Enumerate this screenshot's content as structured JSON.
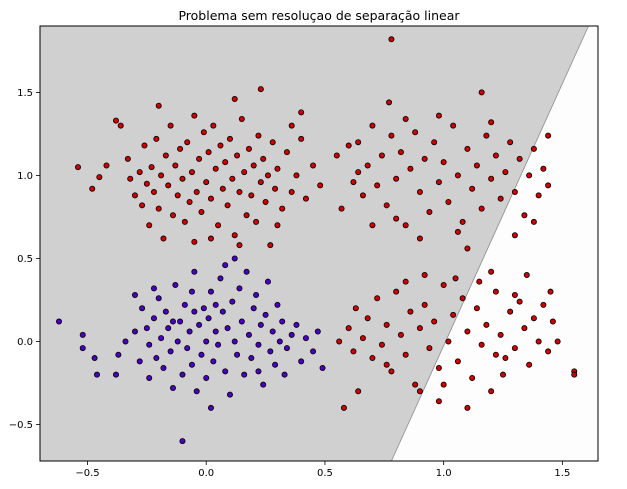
{
  "chart_data": {
    "type": "scatter",
    "title": "Problema sem resoluçao de separação linear",
    "xlabel": "",
    "ylabel": "",
    "xlim": [
      -0.7,
      1.65
    ],
    "ylim": [
      -0.72,
      1.9
    ],
    "x_ticks": [
      -0.5,
      0.0,
      0.5,
      1.0,
      1.5
    ],
    "x_tick_labels": [
      "−0.5",
      "0.0",
      "0.5",
      "1.0",
      "1.5"
    ],
    "y_ticks": [
      -0.5,
      0.0,
      0.5,
      1.0,
      1.5
    ],
    "y_tick_labels": [
      "−0.5",
      "0.0",
      "0.5",
      "1.0",
      "1.5"
    ],
    "grid": false,
    "decision_boundary": {
      "line_points": [
        [
          0.78,
          -0.72
        ],
        [
          1.61,
          1.9
        ]
      ],
      "left_region_color": "#d0d0d0",
      "right_region_color": "#fdfdfd"
    },
    "series": [
      {
        "color": "#4b00c8",
        "edge_color": "#000000",
        "points": [
          [
            -0.62,
            0.12
          ],
          [
            -0.52,
            0.04
          ],
          [
            -0.52,
            -0.04
          ],
          [
            -0.47,
            -0.1
          ],
          [
            -0.46,
            -0.2
          ],
          [
            -0.38,
            -0.2
          ],
          [
            -0.37,
            -0.08
          ],
          [
            -0.34,
            0.0
          ],
          [
            -0.3,
            0.06
          ],
          [
            -0.28,
            -0.12
          ],
          [
            -0.3,
            0.28
          ],
          [
            -0.27,
            0.2
          ],
          [
            -0.25,
            0.08
          ],
          [
            -0.24,
            -0.02
          ],
          [
            -0.24,
            -0.22
          ],
          [
            -0.22,
            0.14
          ],
          [
            -0.21,
            -0.1
          ],
          [
            -0.2,
            0.26
          ],
          [
            -0.19,
            0.02
          ],
          [
            -0.18,
            -0.16
          ],
          [
            -0.17,
            0.18
          ],
          [
            -0.16,
            0.08
          ],
          [
            -0.15,
            -0.06
          ],
          [
            -0.14,
            -0.28
          ],
          [
            -0.13,
            0.34
          ],
          [
            -0.12,
            0.0
          ],
          [
            -0.11,
            0.12
          ],
          [
            -0.1,
            -0.2
          ],
          [
            -0.1,
            -0.6
          ],
          [
            -0.09,
            0.22
          ],
          [
            -0.08,
            -0.04
          ],
          [
            -0.07,
            0.06
          ],
          [
            -0.06,
            -0.14
          ],
          [
            -0.05,
            0.18
          ],
          [
            -0.04,
            -0.3
          ],
          [
            -0.03,
            0.1
          ],
          [
            -0.02,
            -0.08
          ],
          [
            -0.01,
            0.2
          ],
          [
            0.0,
            0.0
          ],
          [
            0.0,
            -0.22
          ],
          [
            0.01,
            0.14
          ],
          [
            0.02,
            0.3
          ],
          [
            0.03,
            -0.12
          ],
          [
            0.04,
            0.06
          ],
          [
            0.05,
            -0.02
          ],
          [
            0.06,
            0.38
          ],
          [
            0.07,
            0.18
          ],
          [
            0.08,
            -0.18
          ],
          [
            0.09,
            0.08
          ],
          [
            0.1,
            -0.32
          ],
          [
            0.11,
            0.24
          ],
          [
            0.12,
            0.0
          ],
          [
            0.13,
            -0.08
          ],
          [
            0.14,
            0.32
          ],
          [
            0.15,
            0.12
          ],
          [
            0.16,
            -0.2
          ],
          [
            0.17,
            0.42
          ],
          [
            0.18,
            0.04
          ],
          [
            0.19,
            -0.1
          ],
          [
            0.2,
            0.2
          ],
          [
            0.21,
            0.28
          ],
          [
            0.22,
            -0.02
          ],
          [
            0.23,
            0.1
          ],
          [
            0.24,
            -0.26
          ],
          [
            0.25,
            0.16
          ],
          [
            0.26,
            0.36
          ],
          [
            0.27,
            -0.06
          ],
          [
            0.28,
            0.06
          ],
          [
            0.29,
            -0.14
          ],
          [
            0.3,
            0.22
          ],
          [
            0.31,
            0.0
          ],
          [
            0.32,
            0.12
          ],
          [
            0.33,
            -0.2
          ],
          [
            0.34,
            -0.04
          ],
          [
            0.36,
            0.04
          ],
          [
            0.38,
            0.1
          ],
          [
            0.4,
            -0.12
          ],
          [
            0.42,
            0.02
          ],
          [
            0.45,
            -0.06
          ],
          [
            0.47,
            0.06
          ],
          [
            0.49,
            -0.16
          ],
          [
            0.08,
            0.46
          ],
          [
            -0.05,
            0.42
          ],
          [
            0.02,
            -0.4
          ],
          [
            -0.22,
            0.32
          ],
          [
            0.12,
            0.5
          ],
          [
            -0.06,
            0.3
          ],
          [
            0.22,
            -0.18
          ],
          [
            -0.14,
            0.12
          ],
          [
            0.04,
            0.22
          ]
        ]
      },
      {
        "color": "#d20000",
        "edge_color": "#000000",
        "points": [
          [
            -0.54,
            1.05
          ],
          [
            -0.48,
            0.92
          ],
          [
            -0.45,
            0.99
          ],
          [
            -0.38,
            1.33
          ],
          [
            -0.36,
            1.3
          ],
          [
            -0.33,
            1.1
          ],
          [
            -0.32,
            0.98
          ],
          [
            -0.3,
            0.88
          ],
          [
            -0.28,
            1.02
          ],
          [
            -0.27,
            0.82
          ],
          [
            -0.26,
            1.18
          ],
          [
            -0.25,
            0.95
          ],
          [
            -0.24,
            0.7
          ],
          [
            -0.23,
            1.05
          ],
          [
            -0.22,
            0.9
          ],
          [
            -0.21,
            1.22
          ],
          [
            -0.2,
            0.8
          ],
          [
            -0.19,
            1.0
          ],
          [
            -0.18,
            0.62
          ],
          [
            -0.17,
            1.12
          ],
          [
            -0.16,
            0.94
          ],
          [
            -0.15,
            1.3
          ],
          [
            -0.14,
            0.76
          ],
          [
            -0.13,
            1.06
          ],
          [
            -0.12,
            0.88
          ],
          [
            -0.11,
            1.16
          ],
          [
            -0.1,
            0.98
          ],
          [
            -0.09,
            0.72
          ],
          [
            -0.08,
            1.2
          ],
          [
            -0.07,
            0.84
          ],
          [
            -0.06,
            1.02
          ],
          [
            -0.05,
            1.36
          ],
          [
            -0.04,
            0.9
          ],
          [
            -0.03,
            1.1
          ],
          [
            -0.02,
            0.78
          ],
          [
            -0.01,
            1.26
          ],
          [
            0.0,
            0.96
          ],
          [
            0.01,
            1.14
          ],
          [
            0.02,
            0.86
          ],
          [
            0.03,
            1.3
          ],
          [
            0.04,
            1.04
          ],
          [
            0.05,
            0.7
          ],
          [
            0.06,
            1.18
          ],
          [
            0.07,
            0.92
          ],
          [
            0.08,
            1.08
          ],
          [
            0.09,
            0.82
          ],
          [
            0.1,
            1.22
          ],
          [
            0.11,
            0.98
          ],
          [
            0.12,
            0.64
          ],
          [
            0.13,
            1.12
          ],
          [
            0.14,
            0.9
          ],
          [
            0.15,
            1.34
          ],
          [
            0.16,
            1.02
          ],
          [
            0.17,
            0.76
          ],
          [
            0.18,
            1.16
          ],
          [
            0.19,
            0.88
          ],
          [
            0.2,
            1.06
          ],
          [
            0.21,
            0.72
          ],
          [
            0.22,
            1.24
          ],
          [
            0.23,
            0.96
          ],
          [
            0.24,
            1.1
          ],
          [
            0.25,
            0.84
          ],
          [
            0.26,
            1.0
          ],
          [
            0.27,
            0.58
          ],
          [
            0.28,
            1.2
          ],
          [
            0.29,
            0.92
          ],
          [
            0.3,
            1.04
          ],
          [
            0.32,
            0.8
          ],
          [
            0.34,
            1.14
          ],
          [
            0.36,
            0.9
          ],
          [
            0.38,
            1.0
          ],
          [
            0.4,
            1.22
          ],
          [
            0.42,
            0.86
          ],
          [
            0.45,
            1.06
          ],
          [
            0.48,
            0.94
          ],
          [
            -0.2,
            1.42
          ],
          [
            0.12,
            1.46
          ],
          [
            0.23,
            1.52
          ],
          [
            0.4,
            1.38
          ],
          [
            -0.05,
            0.6
          ],
          [
            0.36,
            1.3
          ],
          [
            -0.42,
            1.06
          ],
          [
            0.02,
            0.62
          ],
          [
            0.3,
            0.7
          ],
          [
            0.14,
            0.58
          ]
        ]
      },
      {
        "color": "#d20000",
        "edge_color": "#000000",
        "points": [
          [
            0.56,
            0.0
          ],
          [
            0.58,
            -0.4
          ],
          [
            0.6,
            0.08
          ],
          [
            0.62,
            -0.06
          ],
          [
            0.63,
            0.2
          ],
          [
            0.64,
            -0.3
          ],
          [
            0.66,
            0.02
          ],
          [
            0.68,
            0.14
          ],
          [
            0.7,
            -0.1
          ],
          [
            0.72,
            0.26
          ],
          [
            0.74,
            -0.02
          ],
          [
            0.76,
            0.1
          ],
          [
            0.78,
            -0.18
          ],
          [
            0.8,
            0.3
          ],
          [
            0.82,
            0.04
          ],
          [
            0.84,
            -0.08
          ],
          [
            0.86,
            0.18
          ],
          [
            0.88,
            -0.26
          ],
          [
            0.9,
            0.08
          ],
          [
            0.92,
            0.22
          ],
          [
            0.94,
            -0.04
          ],
          [
            0.96,
            0.12
          ],
          [
            0.98,
            -0.16
          ],
          [
            1.0,
            0.34
          ],
          [
            1.02,
            0.0
          ],
          [
            1.04,
            0.16
          ],
          [
            1.06,
            -0.12
          ],
          [
            1.08,
            0.26
          ],
          [
            1.1,
            0.06
          ],
          [
            1.12,
            -0.22
          ],
          [
            1.14,
            0.2
          ],
          [
            1.16,
            -0.02
          ],
          [
            1.18,
            0.1
          ],
          [
            1.2,
            -0.3
          ],
          [
            1.22,
            0.3
          ],
          [
            1.24,
            0.04
          ],
          [
            1.26,
            -0.1
          ],
          [
            1.28,
            0.18
          ],
          [
            1.3,
            -0.04
          ],
          [
            1.32,
            0.24
          ],
          [
            1.34,
            0.08
          ],
          [
            1.36,
            -0.14
          ],
          [
            1.38,
            0.14
          ],
          [
            1.4,
            0.0
          ],
          [
            1.42,
            0.22
          ],
          [
            1.44,
            -0.06
          ],
          [
            1.46,
            0.12
          ],
          [
            1.48,
            0.0
          ],
          [
            1.55,
            -0.18
          ],
          [
            1.55,
            -0.2
          ],
          [
            1.35,
            0.4
          ],
          [
            1.2,
            0.42
          ],
          [
            1.05,
            0.38
          ],
          [
            0.92,
            0.4
          ],
          [
            1.45,
            0.3
          ],
          [
            0.98,
            -0.36
          ],
          [
            1.1,
            -0.4
          ],
          [
            0.9,
            -0.3
          ],
          [
            1.25,
            -0.2
          ],
          [
            1.15,
            0.36
          ],
          [
            0.84,
            0.36
          ],
          [
            1.3,
            0.28
          ],
          [
            1.0,
            -0.26
          ],
          [
            1.22,
            -0.08
          ],
          [
            0.76,
            -0.14
          ]
        ]
      },
      {
        "color": "#d20000",
        "edge_color": "#000000",
        "points": [
          [
            0.55,
            1.12
          ],
          [
            0.57,
            0.8
          ],
          [
            0.6,
            1.18
          ],
          [
            0.62,
            0.96
          ],
          [
            0.64,
            1.2
          ],
          [
            0.66,
            0.88
          ],
          [
            0.68,
            1.06
          ],
          [
            0.7,
            1.3
          ],
          [
            0.72,
            0.94
          ],
          [
            0.74,
            1.12
          ],
          [
            0.76,
            0.82
          ],
          [
            0.78,
            1.24
          ],
          [
            0.8,
            0.98
          ],
          [
            0.82,
            1.14
          ],
          [
            0.84,
            0.7
          ],
          [
            0.86,
            1.04
          ],
          [
            0.88,
            1.26
          ],
          [
            0.9,
            0.9
          ],
          [
            0.92,
            1.1
          ],
          [
            0.94,
            0.78
          ],
          [
            0.96,
            1.2
          ],
          [
            0.98,
            0.96
          ],
          [
            1.0,
            1.08
          ],
          [
            1.02,
            0.84
          ],
          [
            1.04,
            1.3
          ],
          [
            1.06,
            1.0
          ],
          [
            1.08,
            0.72
          ],
          [
            1.1,
            1.16
          ],
          [
            1.12,
            0.92
          ],
          [
            1.14,
            1.06
          ],
          [
            1.16,
            0.8
          ],
          [
            1.18,
            1.24
          ],
          [
            1.2,
            0.98
          ],
          [
            1.22,
            1.12
          ],
          [
            1.24,
            0.86
          ],
          [
            1.26,
            1.02
          ],
          [
            1.28,
            1.2
          ],
          [
            1.3,
            0.9
          ],
          [
            1.32,
            1.1
          ],
          [
            1.34,
            0.76
          ],
          [
            1.36,
            1.0
          ],
          [
            1.38,
            1.16
          ],
          [
            1.4,
            0.88
          ],
          [
            1.42,
            1.04
          ],
          [
            1.44,
            0.94
          ],
          [
            0.78,
            1.82
          ],
          [
            0.77,
            1.44
          ],
          [
            1.16,
            1.5
          ],
          [
            0.9,
            0.62
          ],
          [
            1.1,
            0.56
          ],
          [
            0.7,
            0.7
          ],
          [
            1.3,
            0.64
          ],
          [
            0.98,
            1.36
          ],
          [
            1.2,
            1.32
          ],
          [
            0.84,
            1.34
          ],
          [
            1.38,
            0.72
          ],
          [
            1.44,
            1.24
          ],
          [
            0.8,
            0.74
          ],
          [
            1.06,
            0.66
          ],
          [
            0.64,
            1.02
          ]
        ]
      }
    ]
  }
}
